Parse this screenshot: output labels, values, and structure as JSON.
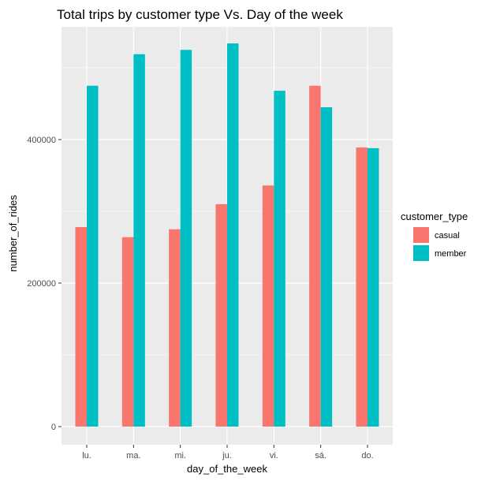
{
  "chart_data": {
    "type": "bar",
    "title": "Total trips by customer type Vs. Day of the week",
    "xlabel": "day_of_the_week",
    "ylabel": "number_of_rides",
    "categories": [
      "lu.",
      "ma.",
      "mi.",
      "ju.",
      "vi.",
      "sá.",
      "do."
    ],
    "series": [
      {
        "name": "casual",
        "color": "#F8766D",
        "values": [
          278000,
          264000,
          275000,
          310000,
          336000,
          475000,
          389000
        ]
      },
      {
        "name": "member",
        "color": "#00BFC4",
        "values": [
          475000,
          519000,
          525000,
          534000,
          468000,
          445000,
          388000
        ]
      }
    ],
    "ylim": [
      0,
      545000
    ],
    "yticks": [
      0,
      200000,
      400000
    ],
    "ytick_labels": [
      "0",
      "200000",
      "400000"
    ],
    "grid": true,
    "legend_title": "customer_type",
    "legend_position": "right",
    "panel_background": "#EBEBEB"
  }
}
